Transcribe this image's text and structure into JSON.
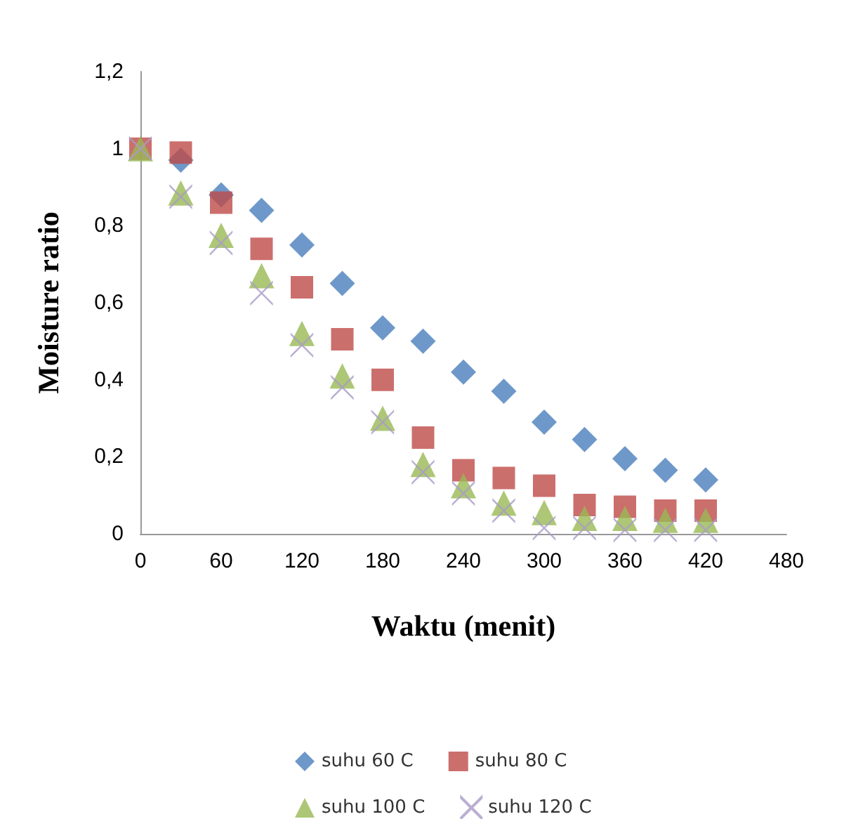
{
  "chart_data": {
    "type": "scatter",
    "xlabel": "Waktu (menit)",
    "ylabel": "Moisture ratio",
    "x": [
      0,
      30,
      60,
      90,
      120,
      150,
      180,
      210,
      240,
      270,
      300,
      330,
      360,
      390,
      420
    ],
    "series": [
      {
        "name": "suhu 60 C",
        "color": "#4a7ebb",
        "marker": "diamond",
        "values": [
          null,
          0.97,
          0.88,
          0.84,
          0.75,
          0.65,
          0.535,
          0.5,
          0.42,
          0.37,
          0.29,
          0.245,
          0.195,
          0.165,
          0.14
        ]
      },
      {
        "name": "suhu 80 C",
        "color": "#be4b48",
        "marker": "square",
        "values": [
          1,
          0.99,
          0.86,
          0.74,
          0.64,
          0.505,
          0.4,
          0.25,
          0.165,
          0.145,
          0.125,
          0.075,
          0.07,
          0.06,
          0.06
        ]
      },
      {
        "name": "suhu 100 C",
        "color": "#98b954",
        "marker": "triangle",
        "values": [
          1,
          0.885,
          0.775,
          0.67,
          0.52,
          0.41,
          0.3,
          0.18,
          0.125,
          0.08,
          0.055,
          0.04,
          0.04,
          0.035,
          0.035
        ]
      },
      {
        "name": "suhu 120 C",
        "color": "#a99bc5",
        "marker": "cross",
        "values": [
          1,
          0.875,
          0.755,
          0.625,
          0.49,
          0.38,
          0.29,
          0.16,
          0.105,
          0.06,
          0.015,
          0.015,
          0.01,
          0.01,
          0.01
        ]
      }
    ],
    "xlim": [
      0,
      480
    ],
    "xticks": [
      0,
      60,
      120,
      180,
      240,
      300,
      360,
      420,
      480
    ],
    "ylim": [
      0,
      1.2
    ],
    "yticks": [
      0,
      {
        "value": 0.2,
        "label": "0,2"
      },
      {
        "value": 0.4,
        "label": "0,4"
      },
      {
        "value": 0.6,
        "label": "0,6"
      },
      {
        "value": 0.8,
        "label": "0,8"
      },
      1,
      {
        "value": 1.2,
        "label": "1,2"
      }
    ],
    "grid": false,
    "legend": "bottom"
  }
}
